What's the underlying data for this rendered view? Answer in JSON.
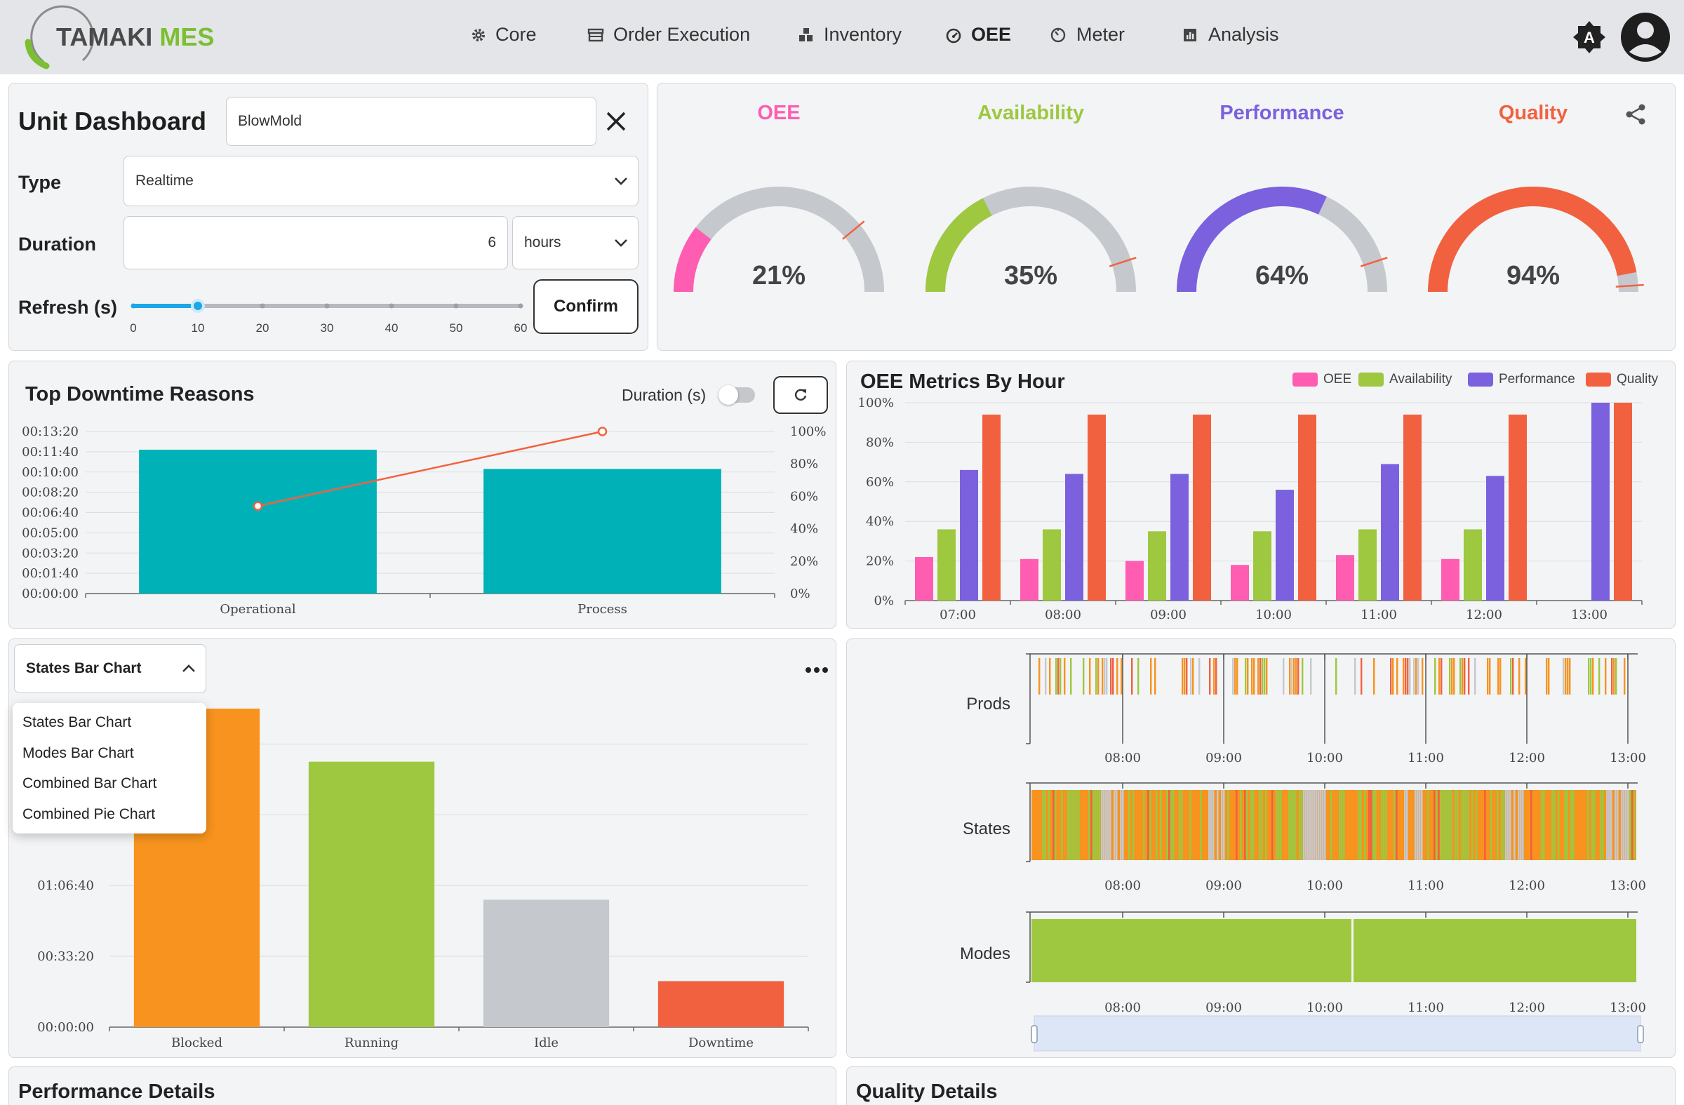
{
  "header": {
    "logo_part1": "TAMAKI",
    "logo_part2": "MES",
    "nav": [
      {
        "label": "Core",
        "icon": "gear-icon"
      },
      {
        "label": "Order Execution",
        "icon": "store-icon"
      },
      {
        "label": "Inventory",
        "icon": "boxes-icon"
      },
      {
        "label": "OEE",
        "icon": "gauge-icon"
      },
      {
        "label": "Meter",
        "icon": "meter-icon"
      },
      {
        "label": "Analysis",
        "icon": "chart-icon"
      }
    ],
    "active_nav": "OEE",
    "theme_letter": "A"
  },
  "unit_dashboard": {
    "title": "Unit Dashboard",
    "unit_value": "BlowMold",
    "type_label": "Type",
    "type_value": "Realtime",
    "duration_label": "Duration",
    "duration_value": "6",
    "duration_unit": "hours",
    "refresh_label": "Refresh (s)",
    "refresh_value": 10,
    "refresh_ticks": [
      "0",
      "10",
      "20",
      "30",
      "40",
      "50",
      "60"
    ],
    "confirm_label": "Confirm"
  },
  "gauges": [
    {
      "title": "OEE",
      "value": 21,
      "display": "21%",
      "color": "#ff5db1",
      "target": 78
    },
    {
      "title": "Availability",
      "value": 35,
      "display": "35%",
      "color": "#9dc840",
      "target": 90
    },
    {
      "title": "Performance",
      "value": 64,
      "display": "64%",
      "color": "#7b61de",
      "target": 90
    },
    {
      "title": "Quality",
      "value": 94,
      "display": "94%",
      "color": "#f2613f",
      "target": 98
    }
  ],
  "gauge_track_color": "#c5c8cd",
  "downtime": {
    "title": "Top Downtime Reasons",
    "toggle_label": "Duration (s)",
    "chart_data": {
      "type": "bar",
      "categories": [
        "Operational",
        "Process"
      ],
      "values_seconds": [
        710,
        615
      ],
      "pareto_percent": [
        54,
        100
      ],
      "y_ticks": [
        "00:00:00",
        "00:01:40",
        "00:03:20",
        "00:05:00",
        "00:06:40",
        "00:08:20",
        "00:10:00",
        "00:11:40",
        "00:13:20"
      ],
      "y_right_ticks": [
        "0%",
        "20%",
        "40%",
        "60%",
        "80%",
        "100%"
      ],
      "ylim": [
        0,
        800
      ],
      "bar_color": "#00b2b8",
      "line_color": "#f2613f"
    }
  },
  "oee_by_hour": {
    "title": "OEE Metrics By Hour",
    "chart_data": {
      "type": "bar",
      "categories": [
        "07:00",
        "08:00",
        "09:00",
        "10:00",
        "11:00",
        "12:00",
        "13:00"
      ],
      "series": [
        {
          "name": "OEE",
          "color": "#ff5db1",
          "values": [
            22,
            21,
            20,
            18,
            23,
            21,
            0
          ]
        },
        {
          "name": "Availability",
          "color": "#9dc840",
          "values": [
            36,
            36,
            35,
            35,
            36,
            36,
            0
          ]
        },
        {
          "name": "Performance",
          "color": "#7b61de",
          "values": [
            66,
            64,
            64,
            56,
            69,
            63,
            100
          ]
        },
        {
          "name": "Quality",
          "color": "#f2613f",
          "values": [
            94,
            94,
            94,
            94,
            94,
            94,
            100
          ]
        }
      ],
      "y_ticks": [
        "0%",
        "20%",
        "40%",
        "60%",
        "80%",
        "100%"
      ],
      "ylim": [
        0,
        100
      ]
    }
  },
  "states_chart": {
    "dropdown_value": "States Bar Chart",
    "menu_items": [
      "States Bar Chart",
      "Modes Bar Chart",
      "Combined Bar Chart",
      "Combined Pie Chart"
    ],
    "chart_data": {
      "type": "bar",
      "categories": [
        "Blocked",
        "Running",
        "Idle",
        "Downtime"
      ],
      "values_seconds": [
        9000,
        7500,
        3600,
        1300
      ],
      "colors": [
        "#f7931e",
        "#9dc840",
        "#c5c8cd",
        "#f2613f"
      ],
      "y_ticks": [
        "00:00:00",
        "00:33:20",
        "01:06:40"
      ],
      "ylim": [
        0,
        9000
      ]
    }
  },
  "timeline": {
    "rows": [
      "Prods",
      "States",
      "Modes"
    ],
    "x_ticks": [
      "08:00",
      "09:00",
      "10:00",
      "11:00",
      "12:00",
      "13:00"
    ],
    "colors": {
      "orange": "#f7931e",
      "green": "#9dc840",
      "red": "#f2613f",
      "gray": "#c5c8cd"
    }
  },
  "bottom": {
    "performance_title": "Performance Details",
    "quality_title": "Quality Details"
  }
}
